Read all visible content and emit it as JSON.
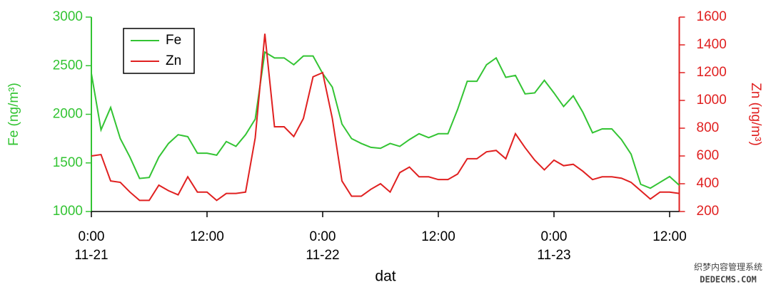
{
  "chart_data": {
    "type": "line",
    "x": [
      "11-21 00:00",
      "11-21 01:00",
      "11-21 02:00",
      "11-21 03:00",
      "11-21 04:00",
      "11-21 05:00",
      "11-21 06:00",
      "11-21 07:00",
      "11-21 08:00",
      "11-21 09:00",
      "11-21 10:00",
      "11-21 11:00",
      "11-21 12:00",
      "11-21 13:00",
      "11-21 14:00",
      "11-21 15:00",
      "11-21 16:00",
      "11-21 17:00",
      "11-21 18:00",
      "11-21 19:00",
      "11-21 20:00",
      "11-21 21:00",
      "11-21 22:00",
      "11-21 23:00",
      "11-22 00:00",
      "11-22 01:00",
      "11-22 02:00",
      "11-22 03:00",
      "11-22 04:00",
      "11-22 05:00",
      "11-22 06:00",
      "11-22 07:00",
      "11-22 08:00",
      "11-22 09:00",
      "11-22 10:00",
      "11-22 11:00",
      "11-22 12:00",
      "11-22 13:00",
      "11-22 14:00",
      "11-22 15:00",
      "11-22 16:00",
      "11-22 17:00",
      "11-22 18:00",
      "11-22 19:00",
      "11-22 20:00",
      "11-22 21:00",
      "11-22 22:00",
      "11-22 23:00",
      "11-23 00:00",
      "11-23 01:00",
      "11-23 02:00",
      "11-23 03:00",
      "11-23 04:00",
      "11-23 05:00",
      "11-23 06:00",
      "11-23 07:00",
      "11-23 08:00",
      "11-23 09:00",
      "11-23 10:00",
      "11-23 11:00",
      "11-23 12:00",
      "11-23 13:00"
    ],
    "xlim": [
      "11-21 00:00",
      "11-23 13:00"
    ],
    "xticks": [
      {
        "value": "11-21 00:00",
        "label": "0:00",
        "date": "11-21"
      },
      {
        "value": "11-21 12:00",
        "label": "12:00"
      },
      {
        "value": "11-22 00:00",
        "label": "0:00",
        "date": "11-22"
      },
      {
        "value": "11-22 12:00",
        "label": "12:00"
      },
      {
        "value": "11-23 00:00",
        "label": "0:00",
        "date": "11-23"
      },
      {
        "value": "11-23 12:00",
        "label": "12:00"
      }
    ],
    "x_label": "dat",
    "y_label": "Fe (ng/m³)",
    "y2_label": "Zn (ng/m³)",
    "ylim": [
      1000,
      3000
    ],
    "yticks": [
      1000,
      1500,
      2000,
      2500,
      3000
    ],
    "y2lim": [
      200,
      1600
    ],
    "y2ticks": [
      200,
      400,
      600,
      800,
      1000,
      1200,
      1400,
      1600
    ],
    "legend": "upper left",
    "series": [
      {
        "name": "Fe",
        "color": "#33c433",
        "axis": "y",
        "values": [
          2420,
          1840,
          2070,
          1750,
          1560,
          1340,
          1350,
          1560,
          1700,
          1790,
          1770,
          1600,
          1600,
          1580,
          1720,
          1670,
          1790,
          1950,
          2640,
          2580,
          2580,
          2510,
          2600,
          2600,
          2420,
          2280,
          1900,
          1750,
          1700,
          1660,
          1650,
          1700,
          1670,
          1740,
          1800,
          1760,
          1800,
          1800,
          2050,
          2340,
          2340,
          2510,
          2580,
          2380,
          2400,
          2210,
          2220,
          2350,
          2220,
          2080,
          2190,
          2020,
          1810,
          1850,
          1850,
          1740,
          1590,
          1280,
          1240,
          1300,
          1360,
          1270
        ]
      },
      {
        "name": "Zn",
        "color": "#e02020",
        "axis": "y2",
        "values": [
          600,
          610,
          420,
          410,
          340,
          280,
          280,
          390,
          350,
          320,
          450,
          340,
          340,
          280,
          330,
          330,
          340,
          730,
          1480,
          810,
          810,
          740,
          870,
          1170,
          1200,
          870,
          420,
          310,
          310,
          360,
          400,
          340,
          480,
          520,
          450,
          450,
          430,
          430,
          470,
          580,
          580,
          630,
          640,
          580,
          760,
          660,
          570,
          500,
          570,
          530,
          540,
          490,
          430,
          450,
          450,
          440,
          410,
          350,
          290,
          340,
          340,
          330
        ]
      }
    ]
  },
  "watermark": [
    "织梦内容管理系统",
    "DEDECMS.COM"
  ]
}
